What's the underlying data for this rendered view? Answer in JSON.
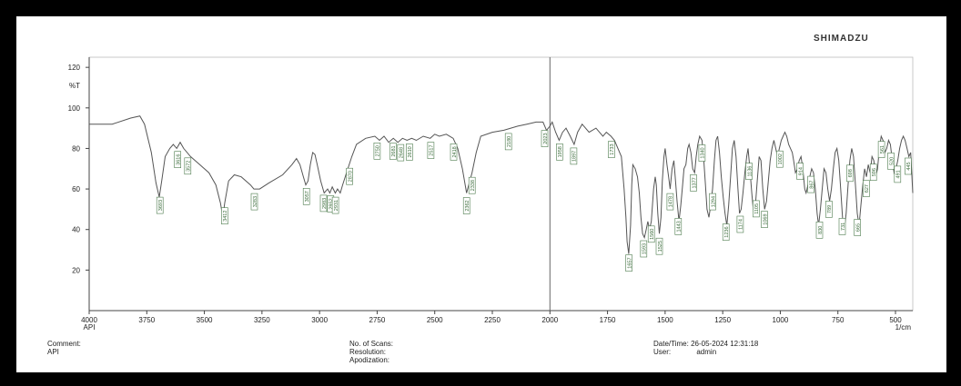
{
  "brand": "SHIMADZU",
  "footer": {
    "comment_label": "Comment:",
    "comment_value": "API",
    "scans_label": "No. of Scans:",
    "resolution_label": "Resolution:",
    "apodization_label": "Apodization:",
    "datetime_label": "Date/Time:",
    "datetime_value": "26-05-2024 12:31:18",
    "user_label": "User:",
    "user_value": "admin"
  },
  "chart_data": {
    "type": "line",
    "ylabel": "%T",
    "xlabel": "1/cm",
    "x_reversed": true,
    "xlim": [
      4000,
      425
    ],
    "ylim": [
      0,
      125
    ],
    "x_ticks": [
      {
        "v": 4000,
        "t": "4000"
      },
      {
        "v": 3750,
        "t": "3750"
      },
      {
        "v": 3500,
        "t": "3500"
      },
      {
        "v": 3250,
        "t": "3250"
      },
      {
        "v": 3000,
        "t": "3000"
      },
      {
        "v": 2750,
        "t": "2750"
      },
      {
        "v": 2500,
        "t": "2500"
      },
      {
        "v": 2250,
        "t": "2250"
      },
      {
        "v": 2000,
        "t": "2000"
      },
      {
        "v": 1750,
        "t": "1750"
      },
      {
        "v": 1500,
        "t": "1500"
      },
      {
        "v": 1250,
        "t": "1250"
      },
      {
        "v": 1000,
        "t": "1000"
      },
      {
        "v": 750,
        "t": "750"
      },
      {
        "v": 500,
        "t": "500"
      }
    ],
    "x_axis_sub": "API",
    "y_ticks": [
      {
        "v": 20,
        "t": "20"
      },
      {
        "v": 40,
        "t": "40"
      },
      {
        "v": 60,
        "t": "60"
      },
      {
        "v": 80,
        "t": "80"
      },
      {
        "v": 100,
        "t": "100"
      },
      {
        "v": 120,
        "t": "120"
      }
    ],
    "series": [
      {
        "color": "#555555",
        "points": [
          [
            4000,
            92
          ],
          [
            3900,
            92
          ],
          [
            3820,
            95
          ],
          [
            3780,
            96
          ],
          [
            3760,
            92
          ],
          [
            3730,
            78
          ],
          [
            3710,
            63
          ],
          [
            3696,
            56
          ],
          [
            3685,
            64
          ],
          [
            3670,
            76
          ],
          [
            3650,
            80
          ],
          [
            3635,
            82
          ],
          [
            3620,
            80
          ],
          [
            3605,
            83
          ],
          [
            3590,
            80
          ],
          [
            3560,
            76
          ],
          [
            3520,
            72
          ],
          [
            3480,
            68
          ],
          [
            3450,
            62
          ],
          [
            3430,
            53
          ],
          [
            3420,
            46
          ],
          [
            3412,
            53
          ],
          [
            3395,
            64
          ],
          [
            3370,
            67
          ],
          [
            3340,
            66
          ],
          [
            3300,
            62
          ],
          [
            3285,
            60
          ],
          [
            3260,
            60
          ],
          [
            3220,
            63
          ],
          [
            3160,
            67
          ],
          [
            3120,
            72
          ],
          [
            3100,
            75
          ],
          [
            3085,
            72
          ],
          [
            3070,
            66
          ],
          [
            3060,
            62
          ],
          [
            3050,
            64
          ],
          [
            3040,
            72
          ],
          [
            3030,
            78
          ],
          [
            3020,
            77
          ],
          [
            3010,
            72
          ],
          [
            2995,
            64
          ],
          [
            2980,
            58
          ],
          [
            2965,
            60
          ],
          [
            2955,
            58
          ],
          [
            2945,
            61
          ],
          [
            2932,
            58
          ],
          [
            2922,
            60
          ],
          [
            2910,
            58
          ],
          [
            2900,
            62
          ],
          [
            2880,
            69
          ],
          [
            2860,
            76
          ],
          [
            2840,
            82
          ],
          [
            2800,
            85
          ],
          [
            2760,
            86
          ],
          [
            2740,
            84
          ],
          [
            2720,
            86
          ],
          [
            2700,
            83
          ],
          [
            2680,
            85
          ],
          [
            2660,
            83
          ],
          [
            2640,
            85
          ],
          [
            2620,
            84
          ],
          [
            2600,
            85
          ],
          [
            2580,
            84
          ],
          [
            2550,
            86
          ],
          [
            2520,
            85
          ],
          [
            2500,
            87
          ],
          [
            2480,
            86
          ],
          [
            2450,
            87
          ],
          [
            2420,
            85
          ],
          [
            2400,
            80
          ],
          [
            2380,
            70
          ],
          [
            2362,
            58
          ],
          [
            2350,
            63
          ],
          [
            2338,
            68
          ],
          [
            2320,
            78
          ],
          [
            2300,
            86
          ],
          [
            2250,
            88
          ],
          [
            2200,
            89
          ],
          [
            2140,
            91
          ],
          [
            2100,
            92
          ],
          [
            2060,
            93
          ],
          [
            2030,
            93
          ],
          [
            2015,
            89
          ],
          [
            2000,
            91
          ],
          [
            1990,
            93
          ],
          [
            1975,
            88
          ],
          [
            1960,
            84
          ],
          [
            1945,
            88
          ],
          [
            1930,
            90
          ],
          [
            1912,
            86
          ],
          [
            1895,
            82
          ],
          [
            1880,
            88
          ],
          [
            1860,
            92
          ],
          [
            1830,
            88
          ],
          [
            1800,
            90
          ],
          [
            1770,
            86
          ],
          [
            1755,
            88
          ],
          [
            1735,
            86
          ],
          [
            1720,
            84
          ],
          [
            1705,
            80
          ],
          [
            1690,
            76
          ],
          [
            1678,
            60
          ],
          [
            1670,
            46
          ],
          [
            1665,
            34
          ],
          [
            1658,
            28
          ],
          [
            1650,
            42
          ],
          [
            1645,
            62
          ],
          [
            1640,
            72
          ],
          [
            1630,
            70
          ],
          [
            1620,
            66
          ],
          [
            1612,
            58
          ],
          [
            1605,
            46
          ],
          [
            1598,
            38
          ],
          [
            1590,
            36
          ],
          [
            1582,
            40
          ],
          [
            1575,
            44
          ],
          [
            1568,
            40
          ],
          [
            1560,
            44
          ],
          [
            1550,
            60
          ],
          [
            1543,
            66
          ],
          [
            1538,
            62
          ],
          [
            1532,
            48
          ],
          [
            1525,
            38
          ],
          [
            1518,
            46
          ],
          [
            1512,
            64
          ],
          [
            1505,
            76
          ],
          [
            1500,
            80
          ],
          [
            1492,
            72
          ],
          [
            1485,
            66
          ],
          [
            1478,
            60
          ],
          [
            1470,
            70
          ],
          [
            1462,
            74
          ],
          [
            1455,
            64
          ],
          [
            1448,
            54
          ],
          [
            1440,
            44
          ],
          [
            1432,
            52
          ],
          [
            1424,
            62
          ],
          [
            1418,
            70
          ],
          [
            1410,
            72
          ],
          [
            1402,
            80
          ],
          [
            1396,
            82
          ],
          [
            1388,
            78
          ],
          [
            1380,
            70
          ],
          [
            1372,
            68
          ],
          [
            1365,
            76
          ],
          [
            1358,
            82
          ],
          [
            1350,
            86
          ],
          [
            1340,
            84
          ],
          [
            1332,
            74
          ],
          [
            1325,
            62
          ],
          [
            1318,
            50
          ],
          [
            1310,
            46
          ],
          [
            1302,
            52
          ],
          [
            1294,
            60
          ],
          [
            1286,
            74
          ],
          [
            1279,
            84
          ],
          [
            1272,
            86
          ],
          [
            1264,
            78
          ],
          [
            1256,
            66
          ],
          [
            1248,
            56
          ],
          [
            1240,
            48
          ],
          [
            1232,
            42
          ],
          [
            1224,
            52
          ],
          [
            1216,
            66
          ],
          [
            1208,
            80
          ],
          [
            1200,
            84
          ],
          [
            1192,
            76
          ],
          [
            1184,
            60
          ],
          [
            1177,
            48
          ],
          [
            1170,
            50
          ],
          [
            1162,
            58
          ],
          [
            1154,
            68
          ],
          [
            1146,
            76
          ],
          [
            1140,
            80
          ],
          [
            1132,
            70
          ],
          [
            1124,
            58
          ],
          [
            1116,
            48
          ],
          [
            1108,
            52
          ],
          [
            1100,
            64
          ],
          [
            1092,
            76
          ],
          [
            1084,
            74
          ],
          [
            1076,
            60
          ],
          [
            1068,
            50
          ],
          [
            1060,
            54
          ],
          [
            1052,
            64
          ],
          [
            1044,
            74
          ],
          [
            1036,
            80
          ],
          [
            1028,
            84
          ],
          [
            1020,
            80
          ],
          [
            1012,
            76
          ],
          [
            1004,
            80
          ],
          [
            996,
            84
          ],
          [
            988,
            86
          ],
          [
            980,
            88
          ],
          [
            972,
            86
          ],
          [
            964,
            82
          ],
          [
            956,
            80
          ],
          [
            948,
            78
          ],
          [
            942,
            74
          ],
          [
            934,
            68
          ],
          [
            926,
            70
          ],
          [
            918,
            74
          ],
          [
            910,
            76
          ],
          [
            902,
            70
          ],
          [
            894,
            60
          ],
          [
            888,
            58
          ],
          [
            880,
            62
          ],
          [
            872,
            66
          ],
          [
            864,
            70
          ],
          [
            856,
            68
          ],
          [
            848,
            60
          ],
          [
            840,
            48
          ],
          [
            834,
            42
          ],
          [
            826,
            50
          ],
          [
            818,
            60
          ],
          [
            810,
            70
          ],
          [
            802,
            68
          ],
          [
            794,
            60
          ],
          [
            786,
            54
          ],
          [
            778,
            60
          ],
          [
            770,
            70
          ],
          [
            762,
            78
          ],
          [
            754,
            80
          ],
          [
            746,
            74
          ],
          [
            738,
            60
          ],
          [
            730,
            46
          ],
          [
            722,
            40
          ],
          [
            714,
            48
          ],
          [
            706,
            62
          ],
          [
            698,
            74
          ],
          [
            690,
            80
          ],
          [
            682,
            76
          ],
          [
            674,
            62
          ],
          [
            666,
            48
          ],
          [
            658,
            42
          ],
          [
            650,
            52
          ],
          [
            642,
            62
          ],
          [
            634,
            70
          ],
          [
            626,
            66
          ],
          [
            618,
            72
          ],
          [
            610,
            68
          ],
          [
            602,
            76
          ],
          [
            594,
            74
          ],
          [
            586,
            66
          ],
          [
            578,
            70
          ],
          [
            570,
            80
          ],
          [
            562,
            86
          ],
          [
            554,
            84
          ],
          [
            546,
            78
          ],
          [
            538,
            80
          ],
          [
            530,
            84
          ],
          [
            522,
            82
          ],
          [
            514,
            74
          ],
          [
            506,
            68
          ],
          [
            498,
            70
          ],
          [
            490,
            74
          ],
          [
            482,
            80
          ],
          [
            474,
            84
          ],
          [
            466,
            86
          ],
          [
            458,
            84
          ],
          [
            450,
            80
          ],
          [
            442,
            76
          ],
          [
            434,
            78
          ],
          [
            425,
            58
          ]
        ]
      }
    ],
    "peak_labels": [
      {
        "x": 3693,
        "t": "3693"
      },
      {
        "x": 3616,
        "t": "3616"
      },
      {
        "x": 3572,
        "t": "3572"
      },
      {
        "x": 3412,
        "t": "3412"
      },
      {
        "x": 3283,
        "t": "3283"
      },
      {
        "x": 3057,
        "t": "3057"
      },
      {
        "x": 2983,
        "t": "2983"
      },
      {
        "x": 2952,
        "t": "2952"
      },
      {
        "x": 2931,
        "t": "2931"
      },
      {
        "x": 2870,
        "t": "2870"
      },
      {
        "x": 2750,
        "t": "2750"
      },
      {
        "x": 2681,
        "t": "2681"
      },
      {
        "x": 2648,
        "t": "2648"
      },
      {
        "x": 2610,
        "t": "2610"
      },
      {
        "x": 2517,
        "t": "2517"
      },
      {
        "x": 2418,
        "t": "2418"
      },
      {
        "x": 2362,
        "t": "2362"
      },
      {
        "x": 2338,
        "t": "2338"
      },
      {
        "x": 2180,
        "t": "2180"
      },
      {
        "x": 2023,
        "t": "2023"
      },
      {
        "x": 1958,
        "t": "1958"
      },
      {
        "x": 1897,
        "t": "1897"
      },
      {
        "x": 1733,
        "t": "1733"
      },
      {
        "x": 1657,
        "t": "1657"
      },
      {
        "x": 1593,
        "t": "1593"
      },
      {
        "x": 1560,
        "t": "1560"
      },
      {
        "x": 1525,
        "t": "1525"
      },
      {
        "x": 1478,
        "t": "1478"
      },
      {
        "x": 1443,
        "t": "1443"
      },
      {
        "x": 1377,
        "t": "1377"
      },
      {
        "x": 1340,
        "t": "1340"
      },
      {
        "x": 1294,
        "t": "1294"
      },
      {
        "x": 1236,
        "t": "1236"
      },
      {
        "x": 1174,
        "t": "1174"
      },
      {
        "x": 1136,
        "t": "1136"
      },
      {
        "x": 1105,
        "t": "1105"
      },
      {
        "x": 1069,
        "t": "1069"
      },
      {
        "x": 1002,
        "t": "1002"
      },
      {
        "x": 914,
        "t": "914"
      },
      {
        "x": 867,
        "t": "867"
      },
      {
        "x": 830,
        "t": "830"
      },
      {
        "x": 789,
        "t": "789"
      },
      {
        "x": 731,
        "t": "731"
      },
      {
        "x": 698,
        "t": "698"
      },
      {
        "x": 665,
        "t": "665"
      },
      {
        "x": 627,
        "t": "627"
      },
      {
        "x": 596,
        "t": "596"
      },
      {
        "x": 561,
        "t": "561"
      },
      {
        "x": 520,
        "t": "520"
      },
      {
        "x": 491,
        "t": "491"
      },
      {
        "x": 445,
        "t": "445"
      }
    ]
  }
}
